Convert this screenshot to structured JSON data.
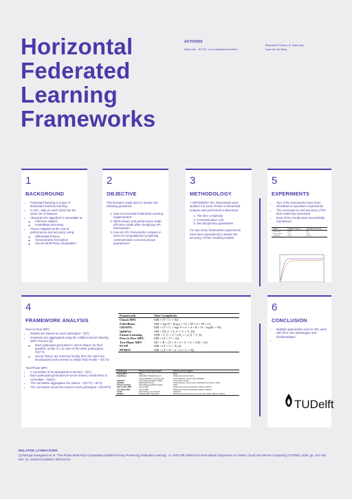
{
  "poster": {
    "title_lines": [
      "Horizontal",
      "Federated",
      "Learning",
      "Frameworks"
    ],
    "authors_label": "AUTHORS",
    "author_line": "Mahim Dani · 4917769 · m.m.mdani@student.tudelft.nl",
    "professor_line": "Responsible Professor: Dr. Kaitai Liang",
    "supervisor_line": "Supervisor: Rui Wang"
  },
  "background": {
    "number": "1",
    "heading": "BACKGROUND",
    "items": [
      "Federated learning is a type of distributed machine learning",
      "In HFL, data on each client has the same set of features",
      "Classical HFL algorithm is vulnerable to:",
      "Inference attacks",
      "model/data poisoning",
      "These mitigated at the cost of performance and accuracy, using",
      "Differential Privacy",
      "Homomorphic Encryption",
      "Secure Multi-Party computation"
    ]
  },
  "objective": {
    "number": "2",
    "heading": "OBJECTIVE",
    "intro": "This literature study aims to answer the following questions:",
    "questions": [
      "How is Horizontal Federated Learning implemented?",
      "What privacy and performance trade-offs were made when designing HFL frameworks?",
      "How do HFL frameworks compare in terms of computational complexity, communication cost and privacy guarantees?"
    ]
  },
  "methodology": {
    "number": "3",
    "heading": "METHODOLOGY",
    "intro": "7 DIFFERENT HFL frameworks were studied. For each of them a theoretical analysis was performed to determine:",
    "items": [
      "The time complexity",
      "Communication cost",
      "Security/privacy guarantees"
    ],
    "outro": "For two of the frameworks experiments have been reproduced to assess the accuracy of their resulting models."
  },
  "experiments": {
    "number": "5",
    "heading": "EXPERIMENTS",
    "items": [
      "Two of the frameworks have been simulated to reproduce experiments",
      "The convergence and accuracy of the final model was assessed",
      "Most of the results were successfully reproduced"
    ],
    "table": {
      "headers": [
        "Dataset",
        "Original Accuracy",
        "Reproduced Accuracy"
      ],
      "rows": [
        [
          "Credit Card",
          "0.905",
          "78"
        ],
        [
          "Breast Cancer",
          "97.63",
          "98.61"
        ],
        [
          "Adult Data",
          "97.02",
          "97.009"
        ]
      ]
    }
  },
  "framework_analysis": {
    "number": "4",
    "heading": "FRAMEWORK ANALYSIS",
    "p2p_title": "Peer-to-Peer MPC",
    "p2p_items": [
      "Models are trained on each participant - O(T)",
      "Gradients are aggregated using the Additive Secret-Sharing MPC Protocol [1]",
      "Each participant generates C secret shares for their gradient, sends C-1 to each of the other participants - O(C^2)",
      "Secret shares are summed locally, then the sums are broadcasted and summed to obtain final results - O(C^2)"
    ],
    "two_phase_title": "Two-Phase MPC",
    "two_phase_items": [
      "A committee of M participants is elected - O(C)",
      "Each participant generates M secret shares, sends them to committee - O(MC)",
      "The committee aggregates the shares - O(C^2) + M^2)",
      "The committee sends the result to each participant - O(CM^2)"
    ],
    "complexity_table": {
      "headers": [
        "Framework",
        "Time Complexity"
      ],
      "rows": [
        [
          "Classic HFL",
          "O(R × (T + C × S))"
        ],
        [
          "FederBoost",
          "O(R × log N × (log n + C) + M + n + M × C)"
        ],
        [
          "GRAFFL",
          "O(R × (T + C × log² S + n + d + R × N × log(K × N))"
        ],
        [
          "SplitFed",
          "O(R × (N_C + L_C + C × L_S))"
        ],
        [
          "Fusion Learning",
          "O(M × T_C + C × (N_i + n_f) + T_S)"
        ],
        [
          "Peer-to-Peer MPC",
          "O(R × (T + C² × S))"
        ],
        [
          "Two-Phase MPC",
          "O(C + R × (T + S × 2 + C × S + C/K × S))"
        ],
        [
          "FLOP",
          "O(R × (T + C × N_i))"
        ],
        [
          "PFMLP",
          "O(R × (T + k² + n × S + C × S))"
        ]
      ]
    },
    "privacy_table": {
      "headers": [
        "Framework",
        "Privacy-preserving measure",
        "Ensures privacy against"
      ],
      "rows": [
        [
          "Classic HFL",
          "None",
          "None"
        ],
        [
          "FederBoost",
          "Simplified Masking Protocol",
          "Honest-but-curious clients"
        ],
        [
          "",
          "Using summaries of private data",
          "Fully dishonest, curious (and colluding)"
        ],
        [
          "GRAFFL",
          "Non-sharing gradients/weights",
          "server and/or clients"
        ],
        [
          "SplitFed",
          "Differential Privacy",
          "Fully dishonest, curious (and colluding) server and/or clients"
        ],
        [
          "Fusion Learning",
          "Non-sharing gradients/weights",
          "None"
        ],
        [
          "Peer-to-Peer MPC",
          "Secure MPC",
          "Honest-but-curious participants without collusion"
        ],
        [
          "Two-Phase MPC",
          "Secure MPC",
          "Honest-but-curious participants without collusion"
        ],
        [
          "FLOP",
          "Only sharing part of model",
          "Unknown"
        ],
        [
          "PFMLP",
          "Homomorphic Encryption",
          "Honest-but-curious server, key-server and clients without collusion"
        ]
      ]
    }
  },
  "conclusion": {
    "number": "6",
    "heading": "CONCLUSION",
    "items": [
      "Multiple approaches exist to HFL each with their own advantages and disadvantages",
      ""
    ]
  },
  "logo": {
    "text_tu": "TU",
    "text_delft": "Delft"
  },
  "related": {
    "heading": "RELATED LITERATURE",
    "text": "[1] Renuga Kanagavelu et al. \"Two-Phase Multi-Party Computation Enabled Privacy-Preserving Federated Learning\". In: 2020 20th IEEE/ACM International Symposium on Cluster, Cloud and Internet Computing (CCGRID). 2020, pp. 410–419 DOI: 10. 1109/CCGrid49817.2020.00-52."
  },
  "colors": {
    "accent": "#4a3aa8",
    "background": "#ededf0",
    "card": "#ffffff"
  }
}
